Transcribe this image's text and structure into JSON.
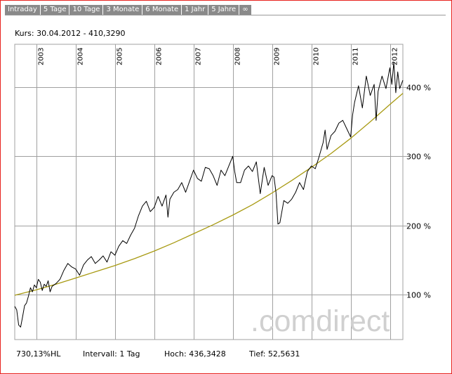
{
  "tabs": [
    "Intraday",
    "5 Tage",
    "10 Tage",
    "3 Monate",
    "6 Monate",
    "1 Jahr",
    "5 Jahre",
    "∞"
  ],
  "kurs_label": "Kurs: 30.04.2012 - 410,3290",
  "footer": {
    "hl": "730,13%HL",
    "interval": "Intervall: 1 Tag",
    "high": "Hoch: 436,3428",
    "low": "Tief: 52,5631"
  },
  "watermark": ".comdirect",
  "colors": {
    "price_line": "#000000",
    "trend_line": "#a89a12",
    "grid": "#a0a0a0",
    "border": "#e8231f"
  },
  "chart_data": {
    "type": "line",
    "x_tick_labels": [
      "2003",
      "2004",
      "2005",
      "2006",
      "2007",
      "2008",
      "2009",
      "2010",
      "2011",
      "2012"
    ],
    "x_ticks": [
      2003.0,
      2004.0,
      2005.0,
      2006.0,
      2007.0,
      2008.0,
      2009.0,
      2010.0,
      2011.0,
      2012.0
    ],
    "xlim": [
      2002.45,
      2012.33
    ],
    "y_tick_labels": [
      "100 %",
      "200 %",
      "300 %",
      "400 %"
    ],
    "y_ticks": [
      100,
      200,
      300,
      400
    ],
    "ylim": [
      35,
      462
    ],
    "grid": true,
    "series": [
      {
        "values_x": [
          2002.45,
          2002.5,
          2002.55,
          2002.6,
          2002.65,
          2002.7,
          2002.75,
          2002.8,
          2002.85,
          2002.9,
          2002.95,
          2003.0,
          2003.05,
          2003.1,
          2003.15,
          2003.2,
          2003.25,
          2003.3,
          2003.35,
          2003.4,
          2003.5,
          2003.6,
          2003.7,
          2003.8,
          2003.9,
          2004.0,
          2004.1,
          2004.2,
          2004.3,
          2004.4,
          2004.5,
          2004.6,
          2004.7,
          2004.8,
          2004.9,
          2005.0,
          2005.1,
          2005.2,
          2005.3,
          2005.4,
          2005.5,
          2005.6,
          2005.7,
          2005.8,
          2005.9,
          2006.0,
          2006.1,
          2006.2,
          2006.3,
          2006.35,
          2006.4,
          2006.5,
          2006.6,
          2006.7,
          2006.8,
          2006.9,
          2007.0,
          2007.1,
          2007.2,
          2007.3,
          2007.4,
          2007.5,
          2007.6,
          2007.7,
          2007.8,
          2007.9,
          2008.0,
          2008.05,
          2008.1,
          2008.2,
          2008.3,
          2008.4,
          2008.5,
          2008.6,
          2008.7,
          2008.8,
          2008.9,
          2009.0,
          2009.05,
          2009.1,
          2009.15,
          2009.2,
          2009.3,
          2009.4,
          2009.5,
          2009.6,
          2009.7,
          2009.8,
          2009.9,
          2010.0,
          2010.1,
          2010.2,
          2010.3,
          2010.35,
          2010.4,
          2010.5,
          2010.6,
          2010.7,
          2010.8,
          2010.9,
          2011.0,
          2011.05,
          2011.1,
          2011.2,
          2011.3,
          2011.4,
          2011.5,
          2011.6,
          2011.65,
          2011.7,
          2011.8,
          2011.9,
          2012.0,
          2012.05,
          2012.1,
          2012.15,
          2012.2,
          2012.25,
          2012.33
        ],
        "values_y": [
          83,
          78,
          56,
          53,
          68,
          84,
          88,
          98,
          110,
          104,
          114,
          110,
          122,
          118,
          106,
          115,
          112,
          120,
          104,
          112,
          116,
          122,
          135,
          145,
          140,
          137,
          128,
          143,
          150,
          155,
          145,
          150,
          156,
          147,
          162,
          157,
          170,
          178,
          174,
          186,
          196,
          214,
          228,
          235,
          220,
          226,
          242,
          228,
          244,
          212,
          238,
          248,
          252,
          262,
          248,
          264,
          280,
          268,
          264,
          284,
          282,
          272,
          258,
          280,
          272,
          286,
          300,
          278,
          262,
          262,
          280,
          286,
          278,
          292,
          246,
          284,
          258,
          272,
          270,
          248,
          202,
          204,
          236,
          232,
          238,
          248,
          262,
          252,
          278,
          286,
          282,
          300,
          320,
          338,
          310,
          330,
          336,
          348,
          352,
          340,
          328,
          360,
          378,
          402,
          370,
          416,
          388,
          404,
          352,
          394,
          416,
          398,
          428,
          404,
          436,
          392,
          422,
          398,
          410
        ],
        "name": ""
      },
      {
        "values_x": [
          2002.45,
          2003.0,
          2003.5,
          2004.0,
          2004.5,
          2005.0,
          2005.5,
          2006.0,
          2006.5,
          2007.0,
          2007.5,
          2008.0,
          2008.5,
          2009.0,
          2009.5,
          2010.0,
          2010.5,
          2011.0,
          2011.5,
          2012.0,
          2012.33
        ],
        "values_y": [
          99,
          107,
          115,
          124,
          133,
          142,
          152,
          163,
          175,
          188,
          201,
          215,
          230,
          247,
          265,
          284,
          304,
          326,
          350,
          375,
          391
        ],
        "name": ""
      }
    ]
  }
}
